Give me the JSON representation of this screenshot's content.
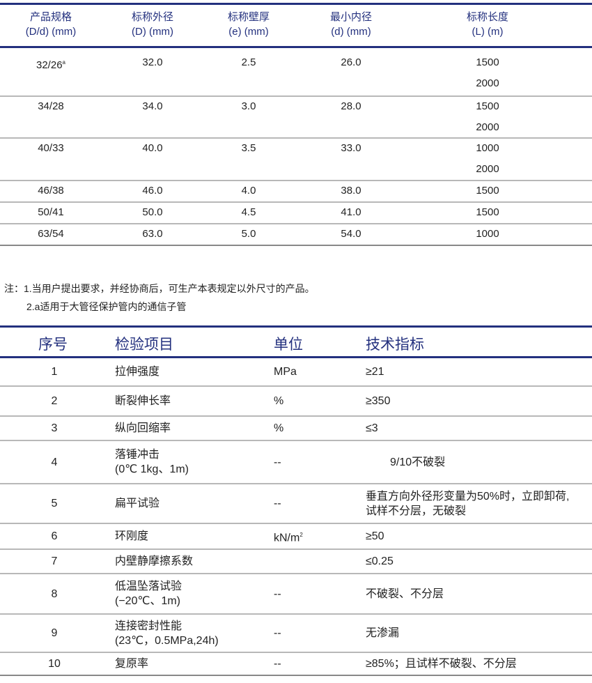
{
  "size_table": {
    "headers": [
      {
        "line1": "产品规格",
        "line2": "(D/d) (mm)"
      },
      {
        "line1": "标称外径",
        "line2": "(D) (mm)"
      },
      {
        "line1": "标称壁厚",
        "line2": "(e) (mm)"
      },
      {
        "line1": "最小内径",
        "line2": "(d) (mm)"
      },
      {
        "line1": "标称长度",
        "line2": "(L) (m)"
      }
    ],
    "rows": [
      {
        "spec": "32/26",
        "spec_sup": "a",
        "od": "32.0",
        "wall": "2.5",
        "id": "26.0",
        "lengths": [
          "1500",
          "2000"
        ]
      },
      {
        "spec": "34/28",
        "spec_sup": "",
        "od": "34.0",
        "wall": "3.0",
        "id": "28.0",
        "lengths": [
          "1500",
          "2000"
        ]
      },
      {
        "spec": "40/33",
        "spec_sup": "",
        "od": "40.0",
        "wall": "3.5",
        "id": "33.0",
        "lengths": [
          "1000",
          "2000"
        ]
      },
      {
        "spec": "46/38",
        "spec_sup": "",
        "od": "46.0",
        "wall": "4.0",
        "id": "38.0",
        "lengths": [
          "1500"
        ]
      },
      {
        "spec": "50/41",
        "spec_sup": "",
        "od": "50.0",
        "wall": "4.5",
        "id": "41.0",
        "lengths": [
          "1500"
        ]
      },
      {
        "spec": "63/54",
        "spec_sup": "",
        "od": "63.0",
        "wall": "5.0",
        "id": "54.0",
        "lengths": [
          "1000"
        ]
      }
    ]
  },
  "notes": {
    "line1": "注：1.当用户提出要求，并经协商后，可生产本表规定以外尺寸的产品。",
    "line2": "2.a适用于大管径保护管内的通信子管"
  },
  "test_table": {
    "headers": [
      "序号",
      "检验项目",
      "单位",
      "技术指标"
    ],
    "rows": [
      {
        "no": "1",
        "item": [
          "拉伸强度"
        ],
        "unit": "MPa",
        "unit_sup": "",
        "spec": [
          "≥21"
        ]
      },
      {
        "no": "2",
        "item": [
          "断裂伸长率"
        ],
        "unit": "%",
        "unit_sup": "",
        "spec": [
          "≥350"
        ]
      },
      {
        "no": "3",
        "item": [
          "纵向回缩率"
        ],
        "unit": "%",
        "unit_sup": "",
        "spec": [
          "≤3"
        ]
      },
      {
        "no": "4",
        "item": [
          "落锤冲击",
          "(0℃  1kg、1m)"
        ],
        "unit": "--",
        "unit_sup": "",
        "spec": [
          "9/10不破裂"
        ]
      },
      {
        "no": "5",
        "item": [
          "扁平试验"
        ],
        "unit": "--",
        "unit_sup": "",
        "spec": [
          "垂直方向外径形变量为50%时，立即卸荷,",
          "试样不分层，无破裂"
        ]
      },
      {
        "no": "6",
        "item": [
          "环刚度"
        ],
        "unit": "kN/m",
        "unit_sup": "2",
        "spec": [
          "≥50"
        ]
      },
      {
        "no": "7",
        "item": [
          "内壁静摩擦系数"
        ],
        "unit": "",
        "unit_sup": "",
        "spec": [
          "≤0.25"
        ]
      },
      {
        "no": "8",
        "item": [
          "低温坠落试验",
          "(−20℃、1m)"
        ],
        "unit": "--",
        "unit_sup": "",
        "spec": [
          "不破裂、不分层"
        ]
      },
      {
        "no": "9",
        "item": [
          "连接密封性能",
          "(23℃，0.5MPa,24h)"
        ],
        "unit": "--",
        "unit_sup": "",
        "spec": [
          "无渗漏"
        ]
      },
      {
        "no": "10",
        "item": [
          "复原率"
        ],
        "unit": "--",
        "unit_sup": "",
        "spec": [
          "≥85%；且试样不破裂、不分层"
        ]
      }
    ]
  },
  "colors": {
    "header_text": "#23307e",
    "rule": "#23307e",
    "separator": "#b8b8b8"
  }
}
